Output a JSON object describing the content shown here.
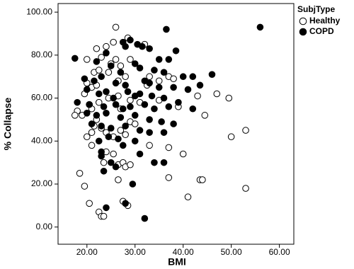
{
  "chart_data": {
    "type": "scatter",
    "x_label": "BMI",
    "y_label": "% Collapse",
    "legend_title": "SubjType",
    "xlim": [
      14,
      63
    ],
    "ylim": [
      -8,
      104
    ],
    "xticks": [
      {
        "value": 20,
        "label": "20.00"
      },
      {
        "value": 30,
        "label": "30.00"
      },
      {
        "value": 40,
        "label": "40.00"
      },
      {
        "value": 50,
        "label": "50.00"
      },
      {
        "value": 60,
        "label": "60.00"
      }
    ],
    "yticks": [
      {
        "value": 0,
        "label": "0.00"
      },
      {
        "value": 20,
        "label": "20.00"
      },
      {
        "value": 40,
        "label": "40.00"
      },
      {
        "value": 60,
        "label": "60.00"
      },
      {
        "value": 80,
        "label": "80.00"
      },
      {
        "value": 100,
        "label": "100.00"
      }
    ],
    "series": [
      {
        "name": "Healthy",
        "color": "#000000",
        "filled": false,
        "x": [
          26,
          28.5,
          24,
          22,
          25.5,
          32,
          20,
          23,
          26,
          21.5,
          22.5,
          24.5,
          25,
          27,
          29,
          20,
          21,
          19.5,
          22,
          26.5,
          28,
          33,
          37,
          38,
          32.5,
          35,
          19,
          18,
          17.5,
          20.5,
          21,
          22.5,
          24.5,
          26.5,
          27,
          29,
          31,
          35,
          39,
          43,
          44.5,
          47,
          49.5,
          20,
          21,
          21.5,
          22,
          23,
          24,
          25.5,
          27,
          29,
          28,
          30,
          33,
          37,
          40,
          50,
          53,
          24,
          25.5,
          26.5,
          27.5,
          28,
          29,
          23.5,
          21,
          18.5,
          19.5,
          26.5,
          37,
          43.5,
          44,
          41,
          53,
          20.5,
          22.5,
          23,
          23.5,
          27.5,
          28.5
        ],
        "values": [
          93,
          88,
          84,
          83,
          86,
          85,
          78,
          79,
          78,
          72,
          73,
          72,
          76,
          75,
          78,
          67,
          65,
          62,
          66,
          68,
          70,
          70,
          70,
          69,
          66,
          68,
          52,
          54,
          52,
          57,
          55,
          58,
          60,
          61,
          55,
          59,
          58,
          59,
          56,
          61,
          52,
          62,
          60,
          42,
          44,
          47,
          50,
          46,
          44,
          42,
          45,
          49,
          43,
          48,
          38,
          37,
          34,
          42,
          45,
          35,
          34,
          29,
          30,
          28,
          29,
          30,
          38,
          25,
          19,
          22,
          23,
          22,
          22,
          14,
          18,
          11,
          7,
          5,
          5,
          12,
          10
        ]
      },
      {
        "name": "COPD",
        "color": "#000000",
        "filled": true,
        "x": [
          56,
          36.5,
          17.5,
          24,
          27.5,
          28,
          29,
          30.5,
          31.5,
          33,
          35,
          37,
          38.5,
          22,
          25,
          27,
          30,
          31,
          34,
          36,
          40,
          42,
          46,
          19.5,
          21.5,
          23,
          26,
          28,
          32,
          33,
          35,
          38,
          41,
          43.5,
          20,
          22.5,
          24,
          25.5,
          28.5,
          30,
          31,
          33.5,
          36,
          39,
          18,
          20.5,
          23.5,
          26,
          27.5,
          29,
          32,
          34,
          37,
          42,
          20,
          22,
          24,
          27,
          30,
          33,
          35.5,
          38,
          21,
          23,
          25,
          28,
          31,
          33,
          36,
          24.5,
          26.5,
          30,
          22.5,
          23,
          25,
          26,
          31,
          34,
          36,
          23.5,
          29.5,
          28,
          24,
          32,
          23,
          27.5
        ],
        "values": [
          93,
          92,
          78.5,
          81,
          86,
          84,
          87,
          85,
          84,
          83,
          78,
          78,
          82,
          77,
          75,
          72,
          76,
          74,
          73,
          72,
          70,
          70,
          71,
          69,
          68,
          70,
          67,
          66,
          68,
          67,
          65,
          65,
          64,
          66,
          64,
          62,
          63,
          60,
          63,
          61,
          62,
          61,
          60,
          58,
          58,
          57,
          56,
          57,
          55,
          56,
          57,
          55,
          56,
          55,
          53,
          52,
          53,
          51,
          52,
          50,
          49,
          48,
          48,
          47,
          46,
          47,
          45,
          44,
          44,
          42,
          41,
          40,
          40,
          35,
          30,
          28,
          34,
          30,
          30,
          26,
          20,
          11,
          9,
          4,
          33,
          38
        ]
      }
    ]
  }
}
